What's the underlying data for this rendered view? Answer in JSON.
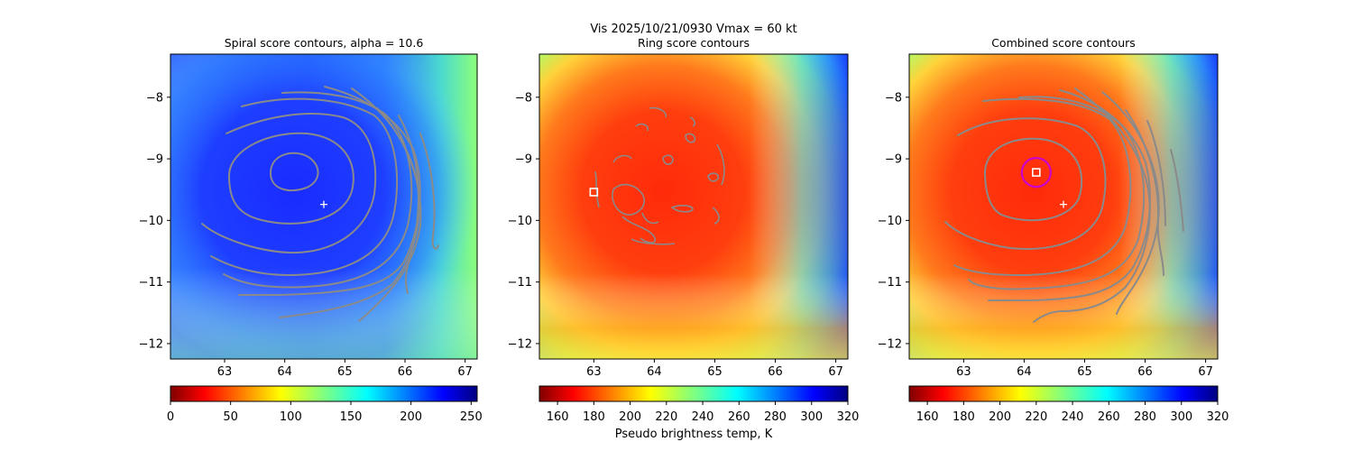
{
  "suptitle": "Vis  2025/10/21/0930    Vmax = 60 kt",
  "colorbar_label": "Pseudo brightness temp, K",
  "chart_data": [
    {
      "type": "heatmap",
      "title": "Spiral score contours, alpha = 10.6",
      "colormap": "jet",
      "xlim": [
        62.1,
        67.2
      ],
      "ylim": [
        -12.25,
        -7.3
      ],
      "xticks": [
        "63",
        "64",
        "65",
        "66",
        "67"
      ],
      "yticks": [
        "−8",
        "−9",
        "−10",
        "−11",
        "−12"
      ],
      "colorbar": {
        "range": [
          0,
          255
        ],
        "ticks": [
          "0",
          "50",
          "100",
          "150",
          "200",
          "250"
        ],
        "colormap": "jet_r"
      },
      "contour_color": "#888888",
      "marker_center": [
        64.65,
        -9.74
      ],
      "markers": [
        {
          "symbol": "+",
          "x": 64.65,
          "y": -9.74,
          "color": "#ffffff"
        }
      ]
    },
    {
      "type": "heatmap",
      "title": "Ring score contours",
      "colormap": "jet",
      "xlim": [
        62.1,
        67.2
      ],
      "ylim": [
        -12.25,
        -7.3
      ],
      "xticks": [
        "63",
        "64",
        "65",
        "66",
        "67"
      ],
      "yticks": [
        "−8",
        "−9",
        "−10",
        "−11",
        "−12"
      ],
      "colorbar": {
        "range": [
          150,
          320
        ],
        "ticks": [
          "160",
          "180",
          "200",
          "220",
          "240",
          "260",
          "280",
          "300",
          "320"
        ],
        "colormap": "jet_r"
      },
      "contour_color": "#888888",
      "markers": [
        {
          "symbol": "square",
          "x": 63.0,
          "y": -9.54,
          "color": "#ffffff"
        }
      ]
    },
    {
      "type": "heatmap",
      "title": "Combined score contours",
      "colormap": "jet",
      "xlim": [
        62.1,
        67.2
      ],
      "ylim": [
        -12.25,
        -7.3
      ],
      "xticks": [
        "63",
        "64",
        "65",
        "66",
        "67"
      ],
      "yticks": [
        "−8",
        "−9",
        "−10",
        "−11",
        "−12"
      ],
      "colorbar": {
        "range": [
          150,
          320
        ],
        "ticks": [
          "160",
          "180",
          "200",
          "220",
          "240",
          "260",
          "280",
          "300",
          "320"
        ],
        "colormap": "jet_r"
      },
      "contour_color": "#888888",
      "markers": [
        {
          "symbol": "square",
          "x": 64.2,
          "y": -9.22,
          "color": "#ffffff"
        },
        {
          "symbol": "circle",
          "x": 64.2,
          "y": -9.22,
          "color": "#cc00cc"
        },
        {
          "symbol": "+",
          "x": 64.65,
          "y": -9.74,
          "color": "#ffffff"
        }
      ]
    }
  ]
}
